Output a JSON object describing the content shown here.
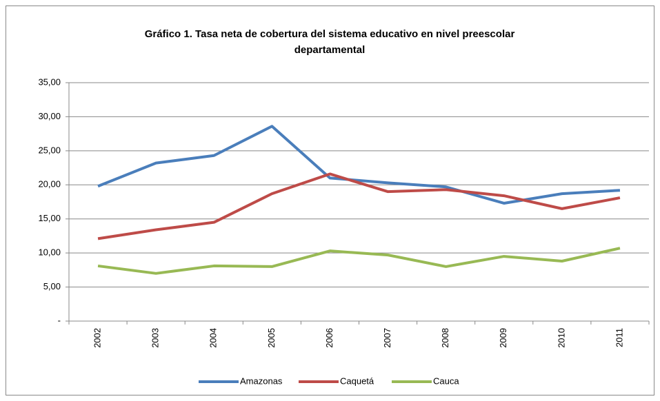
{
  "chart_data": {
    "type": "line",
    "title": [
      "Gráfico 1. Tasa neta de cobertura del sistema educativo en nivel preescolar",
      "departamental"
    ],
    "categories": [
      "2002",
      "2003",
      "2004",
      "2005",
      "2006",
      "2007",
      "2008",
      "2009",
      "2010",
      "2011"
    ],
    "series": [
      {
        "name": "Amazonas",
        "color": "#4a7ebb",
        "values": [
          19.8,
          23.2,
          24.3,
          28.6,
          21.0,
          20.3,
          19.7,
          17.3,
          18.7,
          19.2
        ]
      },
      {
        "name": "Caquetá",
        "color": "#be4b48",
        "values": [
          12.1,
          13.4,
          14.5,
          18.7,
          21.6,
          19.0,
          19.3,
          18.4,
          16.5,
          18.1
        ]
      },
      {
        "name": "Cauca",
        "color": "#98b954",
        "values": [
          8.1,
          7.0,
          8.1,
          8.0,
          10.3,
          9.7,
          8.0,
          9.5,
          8.8,
          10.7
        ]
      }
    ],
    "ylim": [
      0,
      35
    ],
    "yticks": [
      {
        "value": 0,
        "label": "-"
      },
      {
        "value": 5,
        "label": "5,00"
      },
      {
        "value": 10,
        "label": "10,00"
      },
      {
        "value": 15,
        "label": "15,00"
      },
      {
        "value": 20,
        "label": "20,00"
      },
      {
        "value": 25,
        "label": "25,00"
      },
      {
        "value": 30,
        "label": "30,00"
      },
      {
        "value": 35,
        "label": "35,00"
      }
    ],
    "grid": true,
    "legend": "bottom"
  }
}
